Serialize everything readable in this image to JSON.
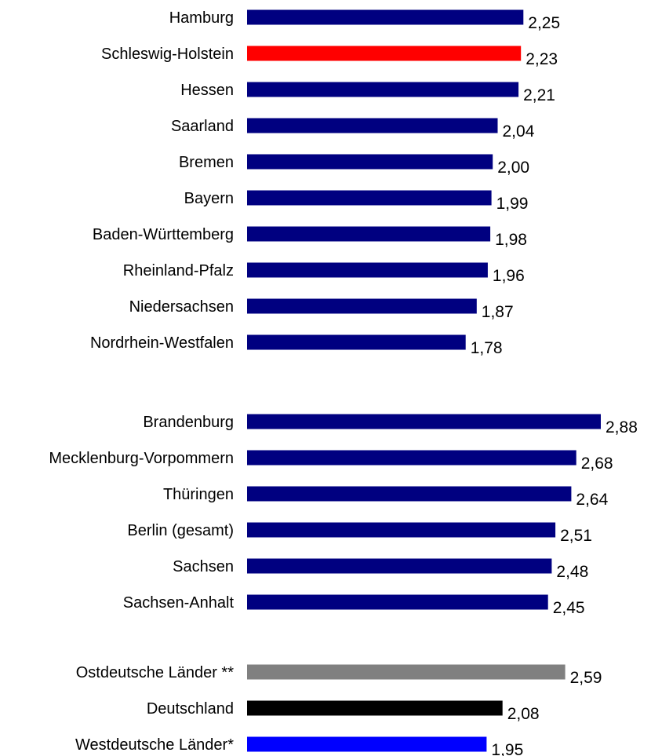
{
  "chart_data": {
    "type": "bar",
    "orientation": "horizontal",
    "title": "",
    "xlabel": "",
    "ylabel": "",
    "grid": false,
    "legend": "none",
    "xlim": [
      0,
      2.88
    ],
    "groups": [
      {
        "bars": [
          {
            "label": "Hamburg",
            "value": 2.25,
            "value_label": "2,25",
            "color": "#000080"
          },
          {
            "label": "Schleswig-Holstein",
            "value": 2.23,
            "value_label": "2,23",
            "color": "#ff0000"
          },
          {
            "label": "Hessen",
            "value": 2.21,
            "value_label": "2,21",
            "color": "#000080"
          },
          {
            "label": "Saarland",
            "value": 2.04,
            "value_label": "2,04",
            "color": "#000080"
          },
          {
            "label": "Bremen",
            "value": 2.0,
            "value_label": "2,00",
            "color": "#000080"
          },
          {
            "label": "Bayern",
            "value": 1.99,
            "value_label": "1,99",
            "color": "#000080"
          },
          {
            "label": "Baden-Württemberg",
            "value": 1.98,
            "value_label": "1,98",
            "color": "#000080"
          },
          {
            "label": "Rheinland-Pfalz",
            "value": 1.96,
            "value_label": "1,96",
            "color": "#000080"
          },
          {
            "label": "Niedersachsen",
            "value": 1.87,
            "value_label": "1,87",
            "color": "#000080"
          },
          {
            "label": "Nordrhein-Westfalen",
            "value": 1.78,
            "value_label": "1,78",
            "color": "#000080"
          }
        ]
      },
      {
        "bars": [
          {
            "label": "Brandenburg",
            "value": 2.88,
            "value_label": "2,88",
            "color": "#000080"
          },
          {
            "label": "Mecklenburg-Vorpommern",
            "value": 2.68,
            "value_label": "2,68",
            "color": "#000080"
          },
          {
            "label": "Thüringen",
            "value": 2.64,
            "value_label": "2,64",
            "color": "#000080"
          },
          {
            "label": "Berlin (gesamt)",
            "value": 2.51,
            "value_label": "2,51",
            "color": "#000080"
          },
          {
            "label": "Sachsen",
            "value": 2.48,
            "value_label": "2,48",
            "color": "#000080"
          },
          {
            "label": "Sachsen-Anhalt",
            "value": 2.45,
            "value_label": "2,45",
            "color": "#000080"
          }
        ]
      },
      {
        "bars": [
          {
            "label": "Ostdeutsche Länder **",
            "value": 2.59,
            "value_label": "2,59",
            "color": "#808080"
          },
          {
            "label": "Deutschland",
            "value": 2.08,
            "value_label": "2,08",
            "color": "#000000"
          },
          {
            "label": "Westdeutsche Länder*",
            "value": 1.95,
            "value_label": "1,95",
            "color": "#0000ff"
          }
        ]
      }
    ]
  }
}
